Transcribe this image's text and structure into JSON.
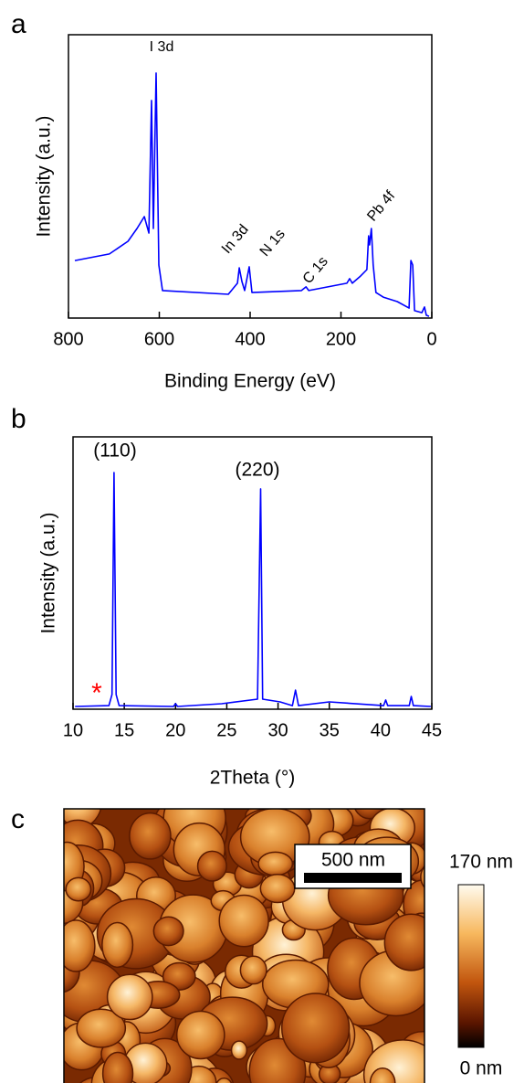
{
  "chart_data": [
    {
      "type": "line",
      "panel_label": "a",
      "xlabel": "Binding Energy (eV)",
      "ylabel": "Intensity (a.u.)",
      "xlim": [
        800,
        0
      ],
      "xticks": [
        800,
        600,
        400,
        200,
        0
      ],
      "ylim": [
        0,
        100
      ],
      "grid": false,
      "series": [
        {
          "color": "#0000ff",
          "x": [
            786,
            710,
            669,
            649,
            633,
            623,
            617,
            613,
            607,
            601,
            593,
            448,
            428,
            424,
            418,
            412,
            402,
            396,
            287,
            277,
            271,
            187,
            181,
            175,
            157,
            143,
            139,
            137,
            133,
            129,
            123,
            107,
            76,
            50,
            46,
            42,
            38,
            22,
            16,
            12,
            6
          ],
          "values": [
            20.3,
            22.6,
            27.1,
            31.6,
            35.8,
            30.0,
            76.8,
            31.6,
            86.5,
            18.7,
            9.7,
            8.4,
            12.3,
            17.7,
            12.9,
            9.7,
            18.1,
            9.0,
            9.7,
            11.0,
            9.7,
            12.3,
            13.9,
            12.3,
            14.8,
            17.1,
            29.0,
            25.8,
            31.6,
            18.7,
            9.0,
            7.4,
            5.8,
            3.5,
            20.3,
            18.7,
            2.6,
            1.9,
            3.9,
            1.0,
            0.6
          ]
        }
      ],
      "annotations": [
        {
          "text": "I 3d"
        },
        {
          "text": "In 3d"
        },
        {
          "text": "N 1s"
        },
        {
          "text": "C 1s"
        },
        {
          "text": "Pb 4f"
        }
      ]
    },
    {
      "type": "line",
      "panel_label": "b",
      "xlabel": "2Theta (°)",
      "ylabel": "Intensity (a.u.)",
      "xlim": [
        10,
        45
      ],
      "xticks": [
        10,
        15,
        20,
        25,
        30,
        35,
        40,
        45
      ],
      "ylim": [
        0,
        100
      ],
      "grid": false,
      "series": [
        {
          "color": "#0000ff",
          "x": [
            10.2,
            13.5,
            13.8,
            14.0,
            14.2,
            14.5,
            19.8,
            20.0,
            20.2,
            24.5,
            28.0,
            28.3,
            28.5,
            30.2,
            31.4,
            31.7,
            32.0,
            35.0,
            40.3,
            40.5,
            40.7,
            42.8,
            43.0,
            43.2,
            44.9
          ],
          "values": [
            1.0,
            1.3,
            5.4,
            86.9,
            5.4,
            1.3,
            1.0,
            2.0,
            1.0,
            2.0,
            3.7,
            80.9,
            3.7,
            2.7,
            1.3,
            7.0,
            1.3,
            2.7,
            1.3,
            3.4,
            1.3,
            1.3,
            4.7,
            1.3,
            1.0
          ]
        }
      ],
      "annotations": [
        {
          "text": "(110)"
        },
        {
          "text": "(220)"
        },
        {
          "text": "*",
          "color": "#ff0000"
        }
      ]
    }
  ],
  "image": {
    "panel_label": "c",
    "scale_bar": "500 nm",
    "colorbar": {
      "max_label": "170 nm",
      "min_label": "0 nm"
    }
  }
}
